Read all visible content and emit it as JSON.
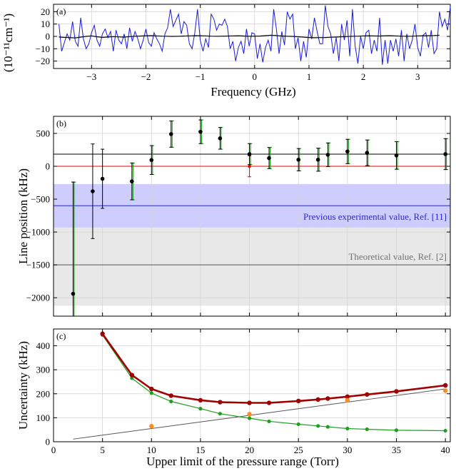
{
  "chart_data": [
    {
      "type": "line",
      "panel_label": "(a)",
      "xlabel": "Frequency (GHz)",
      "ylabel": "(10⁻¹¹cm⁻¹)",
      "xlim": [
        -3.7,
        3.6
      ],
      "ylim": [
        -26,
        26
      ],
      "xticks": [
        -3,
        -2,
        -1,
        0,
        1,
        2,
        3
      ],
      "xtick_labels": [
        "−3",
        "−2",
        "−1",
        "0",
        "1",
        "2",
        "3"
      ],
      "yticks": [
        20,
        10,
        0,
        -10,
        -20
      ],
      "ytick_labels": [
        "20",
        "10",
        "0",
        "−10",
        "−20"
      ],
      "grid": true,
      "series": [
        {
          "color": "#1a1adb",
          "x_start": -3.6,
          "x_step": 0.05,
          "values": [
            10,
            -12,
            -5,
            2,
            -3,
            12,
            -4,
            -8,
            15,
            -2,
            -10,
            -6,
            3,
            9,
            -3,
            -8,
            2,
            6,
            -1,
            4,
            -12,
            5,
            -3,
            -6,
            2,
            -10,
            7,
            -4,
            4,
            -2,
            -10,
            -3,
            6,
            -5,
            -8,
            3,
            -2,
            -6,
            -12,
            2,
            7,
            22,
            8,
            13,
            18,
            2,
            12,
            9,
            -6,
            -10,
            3,
            22,
            -3,
            -12,
            -2,
            -9,
            18,
            14,
            5,
            10,
            9,
            14,
            8,
            -10,
            -4,
            -20,
            -9,
            -4,
            -14,
            6,
            -8,
            3,
            2,
            -18,
            -6,
            -21,
            -9,
            -3,
            -12,
            22,
            6,
            -14,
            4,
            -7,
            20,
            14,
            18,
            -10,
            -1,
            -20,
            -4,
            -17,
            6,
            -2,
            15,
            4,
            -6,
            -6,
            25,
            8,
            2,
            -14,
            -1,
            -20,
            10,
            -3,
            13,
            -16,
            22,
            -8,
            -22,
            0,
            -10,
            3,
            5,
            -14,
            -3,
            -12,
            15,
            -23,
            -3,
            -22,
            -3,
            -12,
            -2,
            -16,
            5,
            -20,
            2,
            -10,
            -3,
            10,
            -9,
            -16,
            1,
            3,
            -9,
            5,
            -14,
            -10,
            20,
            8,
            14,
            5,
            24
          ]
        },
        {
          "color": "#000000",
          "x_start": -3.6,
          "x_step": 0.1,
          "values": [
            -0.5,
            -0.8,
            -1,
            -1.2,
            -0.6,
            0,
            0.4,
            -0.3,
            -0.8,
            -0.5,
            -0.2,
            -0.4,
            -0.6,
            -0.2,
            0.1,
            0.3,
            0.5,
            0.6,
            0.4,
            0.2,
            0.1,
            0,
            0.1,
            0.3,
            0.4,
            0.6,
            0.5,
            0.4,
            0.2,
            0.1,
            0.2,
            0.3,
            0.4,
            0.5,
            0.3,
            0.1,
            0.2,
            0.3,
            0.6,
            0.9,
            0.7,
            0.3,
            0.1,
            0,
            -0.3,
            -0.6,
            -0.9,
            -1.1,
            -1,
            -0.9,
            -0.7,
            -0.5,
            -0.3,
            -0.1,
            0.1,
            0.2,
            0.4,
            0.5,
            0.4,
            0.3,
            0.5,
            0.6,
            0.4,
            0.2,
            0.1,
            0.2,
            0.4,
            0.5,
            0.6,
            0.7,
            0.9
          ]
        }
      ]
    },
    {
      "type": "scatter",
      "panel_label": "(b)",
      "xlabel": "",
      "ylabel": "Line position (kHz)",
      "xlim": [
        0,
        40.5
      ],
      "ylim": [
        -2280,
        760
      ],
      "xticks": [
        0,
        5,
        10,
        15,
        20,
        25,
        30,
        35,
        40
      ],
      "yticks": [
        500,
        0,
        -500,
        -1000,
        -1500,
        -2000
      ],
      "ytick_labels": [
        "500",
        "0",
        "−500",
        "−1000",
        "−1500",
        "−2000"
      ],
      "grid": true,
      "bands": [
        {
          "name": "theoretical",
          "y_low": -2120,
          "y_high": -880,
          "center": -1500,
          "fill": "#e6e6e6",
          "line": "#555555"
        },
        {
          "name": "previous",
          "y_low": -930,
          "y_high": -270,
          "center": -600,
          "fill": "#c8c8ff",
          "line": "#2a2ad0"
        }
      ],
      "hlines": [
        {
          "y": 185,
          "color": "#000000"
        },
        {
          "y": 0,
          "color": "#ee0000"
        }
      ],
      "annotations": {
        "previous": "Previous experimental value, Ref. [11]",
        "theoretical": "Theoretical value, Ref. [2]"
      },
      "series": [
        {
          "color": "#000000",
          "x": [
            2,
            4,
            5,
            8,
            10,
            12,
            15,
            17,
            20,
            22,
            25,
            27,
            28,
            30,
            32,
            35,
            40
          ],
          "values": [
            -1940,
            -380,
            -190,
            -230,
            95,
            490,
            525,
            425,
            185,
            125,
            100,
            100,
            175,
            225,
            205,
            165,
            185
          ],
          "err": [
            1700,
            720,
            450,
            280,
            220,
            200,
            180,
            165,
            160,
            160,
            170,
            175,
            180,
            185,
            195,
            210,
            235
          ]
        },
        {
          "color": "#00a000",
          "x": [
            2,
            8,
            10,
            12,
            15,
            17,
            20,
            22,
            25,
            27,
            28,
            30,
            32,
            35,
            40
          ],
          "values": [
            -1940,
            -230,
            95,
            490,
            525,
            425,
            185,
            125,
            100,
            100,
            175,
            225,
            205,
            165,
            185
          ],
          "err": [
            1700,
            280,
            220,
            200,
            180,
            165,
            160,
            160,
            170,
            175,
            180,
            185,
            195,
            210,
            235
          ]
        },
        {
          "color": "#ee0000",
          "x": [
            20
          ],
          "values": [
            0
          ],
          "err": [
            160
          ]
        }
      ]
    },
    {
      "type": "line",
      "panel_label": "(c)",
      "xlabel": "Upper limit of the pressure range (Torr)",
      "ylabel": "Uncertainty (kHz)",
      "xlim": [
        0,
        40.5
      ],
      "ylim": [
        0,
        470
      ],
      "xticks": [
        0,
        5,
        10,
        15,
        20,
        25,
        30,
        35,
        40
      ],
      "xtick_labels": [
        "0",
        "5",
        "10",
        "15",
        "20",
        "25",
        "30",
        "35",
        "40"
      ],
      "yticks": [
        400,
        300,
        200,
        100,
        0
      ],
      "ytick_labels": [
        "400",
        "300",
        "200",
        "100",
        "0"
      ],
      "grid": true,
      "series": [
        {
          "color": "#a00000",
          "x": [
            5,
            8,
            10,
            12,
            15,
            17,
            20,
            22,
            25,
            27,
            28,
            30,
            32,
            35,
            40
          ],
          "values": [
            450,
            278,
            220,
            192,
            173,
            165,
            162,
            162,
            170,
            176,
            180,
            188,
            197,
            210,
            235
          ]
        },
        {
          "color": "#1ea01e",
          "x": [
            5,
            8,
            10,
            12,
            15,
            17,
            20,
            22,
            25,
            27,
            28,
            30,
            32,
            35,
            40
          ],
          "values": [
            445,
            265,
            203,
            168,
            138,
            117,
            98,
            85,
            73,
            66,
            62,
            55,
            52,
            48,
            46
          ]
        },
        {
          "color": "#555555",
          "x": [
            2,
            40
          ],
          "values": [
            11,
            220
          ]
        },
        {
          "color": "#ff8a1e",
          "x": [
            10,
            20,
            30,
            40
          ],
          "values": [
            65,
            115,
            173,
            213
          ]
        }
      ]
    }
  ]
}
